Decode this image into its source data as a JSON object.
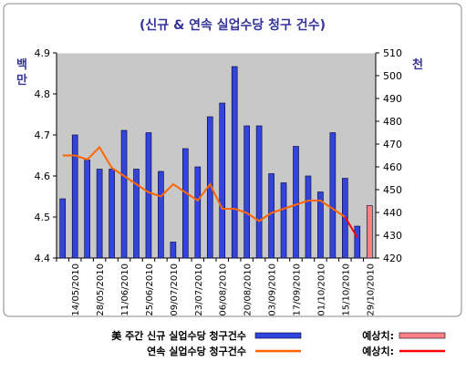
{
  "chart_data": {
    "type": "bar-line",
    "title": "(신규 & 연속 실업수당 청구 건수)",
    "ylabel": "백만",
    "y2label": "천",
    "categories": [
      null,
      "14/05/2010",
      null,
      "28/05/2010",
      null,
      "11/06/2010",
      null,
      "25/06/2010",
      null,
      "09/07/2010",
      null,
      "23/07/2010",
      null,
      "06/08/2010",
      null,
      "20/08/2010",
      null,
      "03/09/2010",
      null,
      "17/09/2010",
      null,
      "01/10/2010",
      null,
      "15/10/2010",
      null,
      "29/10/2010"
    ],
    "ylim": [
      4.4,
      4.9
    ],
    "yticks": [
      4.4,
      4.5,
      4.6,
      4.7,
      4.8,
      4.9
    ],
    "y2lim": [
      420,
      510
    ],
    "y2ticks": [
      420,
      430,
      440,
      450,
      460,
      470,
      480,
      490,
      500,
      510
    ],
    "series": [
      {
        "name": "美 주간 신규 실업수당 청구건수",
        "type": "bar",
        "axis": "y2",
        "color": "#3344dd",
        "values": [
          446,
          474,
          463,
          459,
          459,
          476,
          459,
          475,
          458,
          427,
          468,
          460,
          482,
          488,
          504,
          478,
          478,
          457,
          453,
          469,
          456,
          449,
          475,
          455,
          434,
          null
        ]
      },
      {
        "name": "예상치:",
        "type": "bar",
        "axis": "y2",
        "color": "#ff8080",
        "values": [
          null,
          null,
          null,
          null,
          null,
          null,
          null,
          null,
          null,
          null,
          null,
          null,
          null,
          null,
          null,
          null,
          null,
          null,
          null,
          null,
          null,
          null,
          null,
          null,
          null,
          443
        ]
      },
      {
        "name": "연속 실업수당 청구건수",
        "type": "line",
        "color": "#ff6600",
        "values": [
          4.65,
          4.65,
          4.64,
          4.67,
          4.62,
          4.6,
          4.58,
          4.56,
          4.55,
          4.58,
          4.56,
          4.54,
          4.58,
          4.52,
          4.52,
          4.51,
          4.49,
          4.51,
          4.52,
          4.53,
          4.54,
          4.54,
          4.52,
          4.5,
          null,
          null
        ]
      },
      {
        "name": "예상치:",
        "type": "line",
        "color": "#ff0000",
        "values": [
          null,
          null,
          null,
          null,
          null,
          null,
          null,
          null,
          null,
          null,
          null,
          null,
          null,
          null,
          null,
          null,
          null,
          null,
          null,
          null,
          null,
          null,
          null,
          4.5,
          4.45,
          null
        ]
      }
    ]
  }
}
